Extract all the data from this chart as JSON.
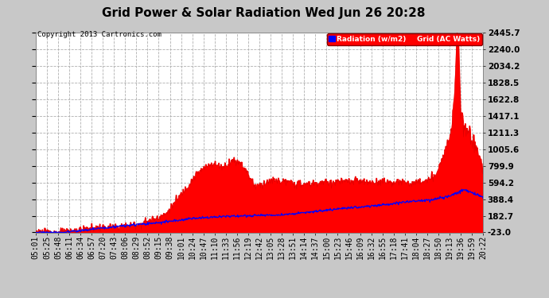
{
  "title": "Grid Power & Solar Radiation Wed Jun 26 20:28",
  "copyright": "Copyright 2013 Cartronics.com",
  "yticks": [
    -23.0,
    182.7,
    388.4,
    594.2,
    799.9,
    1005.6,
    1211.3,
    1417.1,
    1622.8,
    1828.5,
    2034.2,
    2240.0,
    2445.7
  ],
  "ymin": -23.0,
  "ymax": 2445.7,
  "legend_radiation_label": "Radiation (w/m2)",
  "legend_grid_label": "Grid (AC Watts)",
  "bg_color": "#c8c8c8",
  "plot_bg_color": "#ffffff",
  "grid_color": "#b0b0b0",
  "red_fill_color": "#ff0000",
  "red_line_color": "#dd0000",
  "blue_line_color": "#0000ff",
  "title_fontsize": 11,
  "tick_fontsize": 7,
  "x_tick_labels": [
    "05:01",
    "05:25",
    "05:48",
    "06:11",
    "06:34",
    "06:57",
    "07:20",
    "07:43",
    "08:06",
    "08:29",
    "08:52",
    "09:15",
    "09:38",
    "10:01",
    "10:24",
    "10:47",
    "11:10",
    "11:33",
    "11:56",
    "12:19",
    "12:42",
    "13:05",
    "13:28",
    "13:51",
    "14:14",
    "14:37",
    "15:00",
    "15:23",
    "15:46",
    "16:09",
    "16:32",
    "16:55",
    "17:18",
    "17:41",
    "18:04",
    "18:27",
    "18:50",
    "19:13",
    "19:36",
    "19:59",
    "20:22"
  ]
}
